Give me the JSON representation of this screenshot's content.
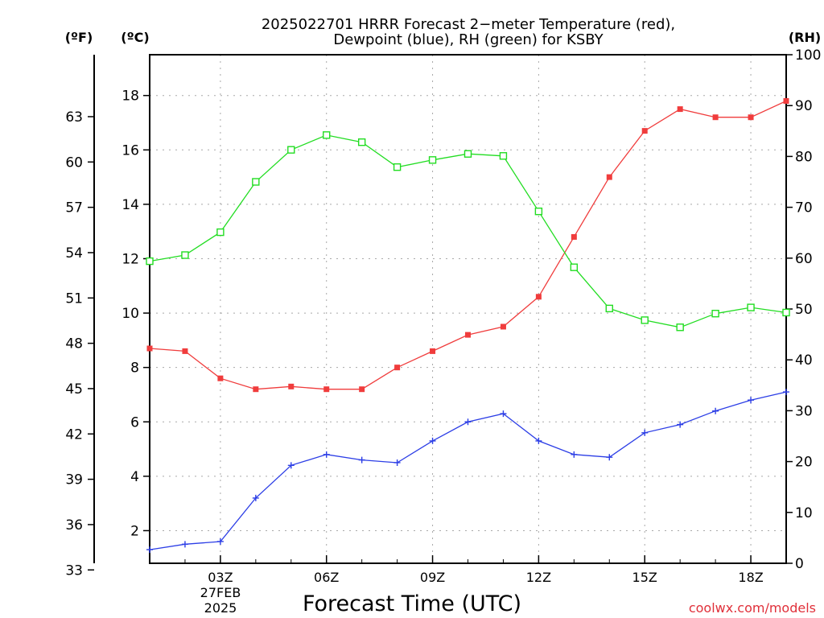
{
  "chart_data": {
    "type": "line",
    "title_line1": "2025022701 HRRR Forecast 2−meter Temperature (red),",
    "title_line2": "Dewpoint (blue), RH (green) for KSBY",
    "xlabel": "Forecast Time (UTC)",
    "credit": "coolwx.com/models",
    "unit_f": "(ºF)",
    "unit_c": "(ºC)",
    "unit_rh": "(RH)",
    "date_label_line1": "27FEB",
    "date_label_line2": "2025",
    "x": [
      1,
      2,
      3,
      4,
      5,
      6,
      7,
      8,
      9,
      10,
      11,
      12,
      13,
      14,
      15,
      16,
      17,
      18,
      19
    ],
    "xlim": [
      1,
      19
    ],
    "x_ticks": [
      {
        "x": 3,
        "label": "03Z"
      },
      {
        "x": 6,
        "label": "06Z"
      },
      {
        "x": 9,
        "label": "09Z"
      },
      {
        "x": 12,
        "label": "12Z"
      },
      {
        "x": 15,
        "label": "15Z"
      },
      {
        "x": 18,
        "label": "18Z"
      }
    ],
    "y_celsius": {
      "lim": [
        0.8,
        19.5
      ],
      "ticks": [
        2,
        4,
        6,
        8,
        10,
        12,
        14,
        16,
        18
      ]
    },
    "y_fahrenheit": {
      "ticks": [
        33,
        36,
        39,
        42,
        45,
        48,
        51,
        54,
        57,
        60,
        63
      ]
    },
    "y_rh": {
      "lim": [
        0,
        100
      ],
      "ticks": [
        0,
        10,
        20,
        30,
        40,
        50,
        60,
        70,
        80,
        90,
        100
      ]
    },
    "grid": true,
    "series": [
      {
        "name": "Temperature",
        "axis": "celsius",
        "color": "#f03c3c",
        "marker": "filled-square",
        "values": [
          8.7,
          8.6,
          7.6,
          7.2,
          7.3,
          7.2,
          7.2,
          8.0,
          8.6,
          9.2,
          9.5,
          10.6,
          12.8,
          15.0,
          16.7,
          17.5,
          17.2,
          17.2,
          17.8
        ]
      },
      {
        "name": "Dewpoint",
        "axis": "celsius",
        "color": "#2c3ee6",
        "marker": "plus",
        "values": [
          1.3,
          1.5,
          1.6,
          3.2,
          4.4,
          4.8,
          4.6,
          4.5,
          5.3,
          6.0,
          6.3,
          5.3,
          4.8,
          4.7,
          5.6,
          5.9,
          6.4,
          6.8,
          7.1
        ]
      },
      {
        "name": "RH",
        "axis": "rh",
        "color": "#22dd22",
        "marker": "open-square",
        "values": [
          59.4,
          60.6,
          65.1,
          75.0,
          81.3,
          84.2,
          82.8,
          77.9,
          79.3,
          80.5,
          80.1,
          69.2,
          58.2,
          50.1,
          47.8,
          46.4,
          49.1,
          50.3,
          49.3
        ]
      }
    ]
  }
}
